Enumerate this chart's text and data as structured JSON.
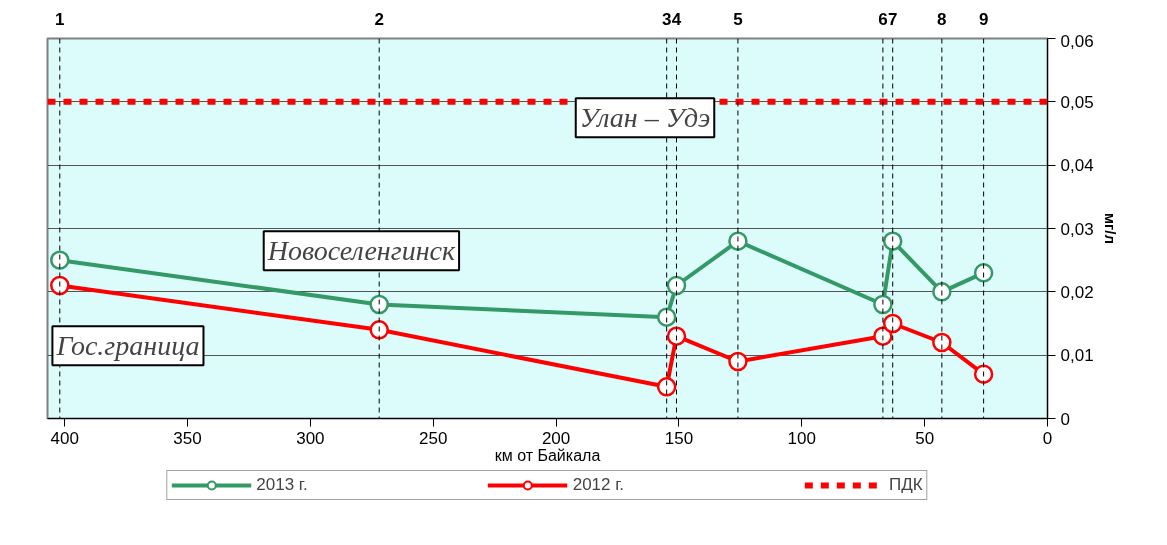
{
  "chart_data": {
    "type": "line",
    "xlabel": "км от Байкала",
    "ylabel": "мг/л",
    "x": [
      402,
      272,
      155,
      151,
      126,
      67,
      63,
      43,
      26
    ],
    "series": [
      {
        "name": "2013 г.",
        "color": "#339966",
        "values": [
          0.025,
          0.018,
          0.016,
          0.021,
          0.028,
          0.018,
          0.028,
          0.02,
          0.023
        ]
      },
      {
        "name": "2012 г.",
        "color": "#ff0000",
        "values": [
          0.021,
          0.014,
          0.005,
          0.013,
          0.009,
          0.013,
          0.015,
          0.012,
          0.007
        ]
      }
    ],
    "xlim": [
      407,
      0
    ],
    "xticks": [
      400,
      350,
      300,
      250,
      200,
      150,
      100,
      50,
      0
    ],
    "ylim": [
      0,
      0.06
    ],
    "yticks": [
      {
        "value": 0,
        "label": "0"
      },
      {
        "value": 0.01,
        "label": "0,01"
      },
      {
        "value": 0.02,
        "label": "0,02"
      },
      {
        "value": 0.03,
        "label": "0,03"
      },
      {
        "value": 0.04,
        "label": "0,04"
      },
      {
        "value": 0.05,
        "label": "0,05"
      },
      {
        "value": 0.06,
        "label": "0,06"
      }
    ],
    "ref_lines": [
      {
        "axis": "y",
        "value": 0.05,
        "label": "ПДК",
        "color": "#ff0000",
        "line_style": "dashed"
      },
      {
        "axis": "x",
        "value": 402,
        "color": "#000000",
        "line_style": "dashed"
      },
      {
        "axis": "x",
        "value": 272,
        "color": "#000000",
        "line_style": "dashed"
      },
      {
        "axis": "x",
        "value": 155,
        "color": "#000000",
        "line_style": "dashed"
      },
      {
        "axis": "x",
        "value": 151,
        "color": "#000000",
        "line_style": "dashed"
      },
      {
        "axis": "x",
        "value": 126,
        "color": "#000000",
        "line_style": "dashed"
      },
      {
        "axis": "x",
        "value": 67,
        "color": "#000000",
        "line_style": "dashed"
      },
      {
        "axis": "x",
        "value": 63,
        "color": "#000000",
        "line_style": "dashed"
      },
      {
        "axis": "x",
        "value": 43,
        "color": "#000000",
        "line_style": "dashed"
      },
      {
        "axis": "x",
        "value": 26,
        "color": "#000000",
        "line_style": "dashed"
      }
    ],
    "annotations": [
      "Гос.граница",
      "Новоселенгинск",
      "Улан – Удэ",
      "1",
      "2",
      "3",
      "4",
      "5",
      "6",
      "7",
      "8",
      "9"
    ],
    "grid": "y",
    "legend": "bottom",
    "marker": "circle",
    "line_style": "solid"
  }
}
